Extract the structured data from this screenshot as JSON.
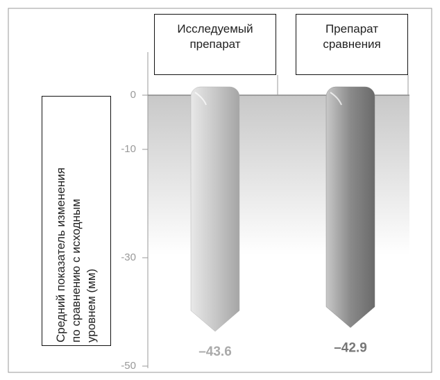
{
  "chart_data": {
    "type": "bar",
    "y_label": "Средний показатель изменения\nпо сравнению с исходным\nуровнем (мм)",
    "categories": [
      "Исследуемый\nпрепарат",
      "Препарат\nсравнения"
    ],
    "values": [
      -43.6,
      -42.9
    ],
    "value_labels": [
      "–43.6",
      "–42.9"
    ],
    "colors": [
      "#b4b4b4",
      "#8a8a8a"
    ],
    "ylim": [
      -50,
      0
    ],
    "yticks": [
      0,
      -10,
      -30,
      -50
    ]
  }
}
